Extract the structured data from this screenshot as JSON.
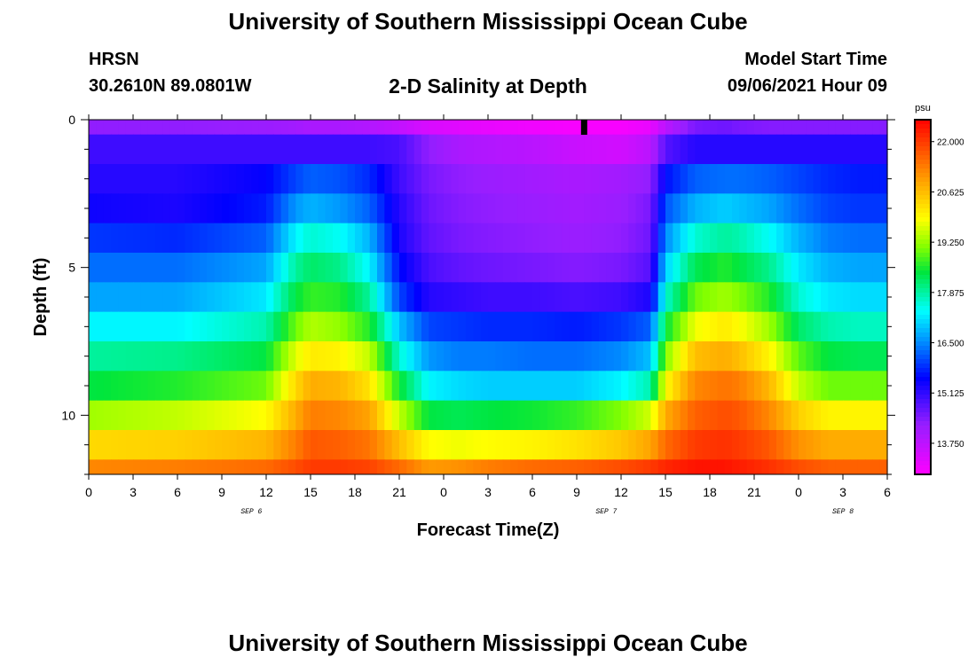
{
  "header": {
    "title": "University of Southern Mississippi Ocean Cube",
    "station": "HRSN",
    "coords": "30.2610N  89.0801W",
    "plot_title": "2-D Salinity at Depth",
    "model_start_label": "Model Start Time",
    "model_start_value": "09/06/2021 Hour 09"
  },
  "footer": {
    "title": "University of Southern Mississippi Ocean Cube"
  },
  "chart_data": {
    "type": "heatmap",
    "title": "2-D Salinity at Depth",
    "xlabel": "Forecast Time(Z)",
    "ylabel": "Depth (ft)",
    "x_tick_labels": [
      "0",
      "3",
      "6",
      "9",
      "12",
      "15",
      "18",
      "21",
      "0",
      "3",
      "6",
      "9",
      "12",
      "15",
      "18",
      "21",
      "0",
      "3",
      "6"
    ],
    "x_range_hours": [
      0,
      54
    ],
    "date_labels": [
      {
        "text": "SEP 6",
        "hour": 11
      },
      {
        "text": "SEP 7",
        "hour": 35
      },
      {
        "text": "SEP 8",
        "hour": 51
      }
    ],
    "y_tick_labels": [
      "0",
      "5",
      "10"
    ],
    "y_range_ft": [
      0,
      12
    ],
    "depth_layers_ft": [
      0,
      1,
      2,
      3,
      4,
      5,
      6,
      7,
      8,
      9,
      10,
      11,
      12
    ],
    "model_start_marker_hour": 33.5,
    "colorbar": {
      "unit": "psu",
      "min": 12.9,
      "max": 22.6,
      "tick_labels": [
        "22.000",
        "20.625",
        "19.250",
        "17.875",
        "16.500",
        "15.125",
        "13.750"
      ],
      "tick_values": [
        22.0,
        20.625,
        19.25,
        17.875,
        16.5,
        15.125,
        13.75
      ]
    },
    "salinity_psu_by_layer": {
      "hours": [
        0,
        6,
        12,
        14,
        15,
        17,
        19,
        21,
        23,
        25,
        27,
        30,
        33,
        36,
        38,
        39,
        41,
        43,
        44,
        46,
        48,
        50,
        52,
        54
      ],
      "layers": [
        [
          14.3,
          14.3,
          14.2,
          14.1,
          14.0,
          14.0,
          13.9,
          13.7,
          13.4,
          13.3,
          13.2,
          13.1,
          13.0,
          13.0,
          13.2,
          13.8,
          14.5,
          14.6,
          14.5,
          14.4,
          14.4,
          14.4,
          14.4,
          14.4
        ],
        [
          15.0,
          15.0,
          15.0,
          15.0,
          15.0,
          15.0,
          15.0,
          14.9,
          14.3,
          14.0,
          13.9,
          13.8,
          13.6,
          13.5,
          13.8,
          14.8,
          15.2,
          15.2,
          15.2,
          15.2,
          15.2,
          15.2,
          15.2,
          15.2
        ],
        [
          15.2,
          15.2,
          15.5,
          16.0,
          16.2,
          16.1,
          15.8,
          15.0,
          14.5,
          14.3,
          14.2,
          14.1,
          14.0,
          14.1,
          14.3,
          15.6,
          16.2,
          16.3,
          16.3,
          16.2,
          16.0,
          15.8,
          15.7,
          15.7
        ],
        [
          15.4,
          15.3,
          15.7,
          16.6,
          16.8,
          16.6,
          16.2,
          15.2,
          14.6,
          14.4,
          14.3,
          14.2,
          14.1,
          14.2,
          14.5,
          16.1,
          16.8,
          17.0,
          16.9,
          16.7,
          16.3,
          16.0,
          15.9,
          15.9
        ],
        [
          15.9,
          15.8,
          16.2,
          17.3,
          17.6,
          17.4,
          16.8,
          15.3,
          14.7,
          14.5,
          14.4,
          14.3,
          14.2,
          14.3,
          14.6,
          16.5,
          17.6,
          17.9,
          17.8,
          17.4,
          16.8,
          16.4,
          16.3,
          16.3
        ],
        [
          16.3,
          16.3,
          16.7,
          17.9,
          18.2,
          18.0,
          17.3,
          15.6,
          14.9,
          14.7,
          14.6,
          14.5,
          14.4,
          14.5,
          14.8,
          17.0,
          18.3,
          18.6,
          18.4,
          18.0,
          17.2,
          16.8,
          16.7,
          16.7
        ],
        [
          16.7,
          16.7,
          17.2,
          18.4,
          18.7,
          18.6,
          17.9,
          16.0,
          15.2,
          15.1,
          15.0,
          15.0,
          14.9,
          15.0,
          15.3,
          17.6,
          19.0,
          19.3,
          19.1,
          18.6,
          17.6,
          17.2,
          17.1,
          17.1
        ],
        [
          17.3,
          17.3,
          17.8,
          19.0,
          19.4,
          19.2,
          18.6,
          16.9,
          16.0,
          15.9,
          15.8,
          15.8,
          15.7,
          15.9,
          16.2,
          18.4,
          19.8,
          20.1,
          19.9,
          19.3,
          18.2,
          17.8,
          17.7,
          17.7
        ],
        [
          17.9,
          18.0,
          18.4,
          19.7,
          20.1,
          20.0,
          19.5,
          17.6,
          16.6,
          16.4,
          16.4,
          16.3,
          16.3,
          16.5,
          16.9,
          19.1,
          20.6,
          20.8,
          20.6,
          20.0,
          18.9,
          18.4,
          18.3,
          18.3
        ],
        [
          18.4,
          18.6,
          19.0,
          20.3,
          20.8,
          20.7,
          20.2,
          18.5,
          17.3,
          17.1,
          17.0,
          17.0,
          17.0,
          17.3,
          17.8,
          19.9,
          21.2,
          21.4,
          21.3,
          20.7,
          19.5,
          19.0,
          19.0,
          19.0
        ],
        [
          19.3,
          19.5,
          19.9,
          20.8,
          21.3,
          21.2,
          20.9,
          19.5,
          18.4,
          18.3,
          18.4,
          18.5,
          18.7,
          19.1,
          19.6,
          20.8,
          21.6,
          21.8,
          21.7,
          21.2,
          20.4,
          20.0,
          20.0,
          20.0
        ],
        [
          20.3,
          20.4,
          20.7,
          21.3,
          21.7,
          21.6,
          21.4,
          20.6,
          19.9,
          19.8,
          19.9,
          20.0,
          20.2,
          20.5,
          20.9,
          21.5,
          22.0,
          22.1,
          22.0,
          21.7,
          21.1,
          20.8,
          20.8,
          20.8
        ],
        [
          21.2,
          21.3,
          21.5,
          21.8,
          22.0,
          22.0,
          21.9,
          21.5,
          21.0,
          21.1,
          21.3,
          21.5,
          21.6,
          21.8,
          22.0,
          22.2,
          22.4,
          22.4,
          22.3,
          22.1,
          21.8,
          21.6,
          21.6,
          21.6
        ]
      ]
    }
  }
}
